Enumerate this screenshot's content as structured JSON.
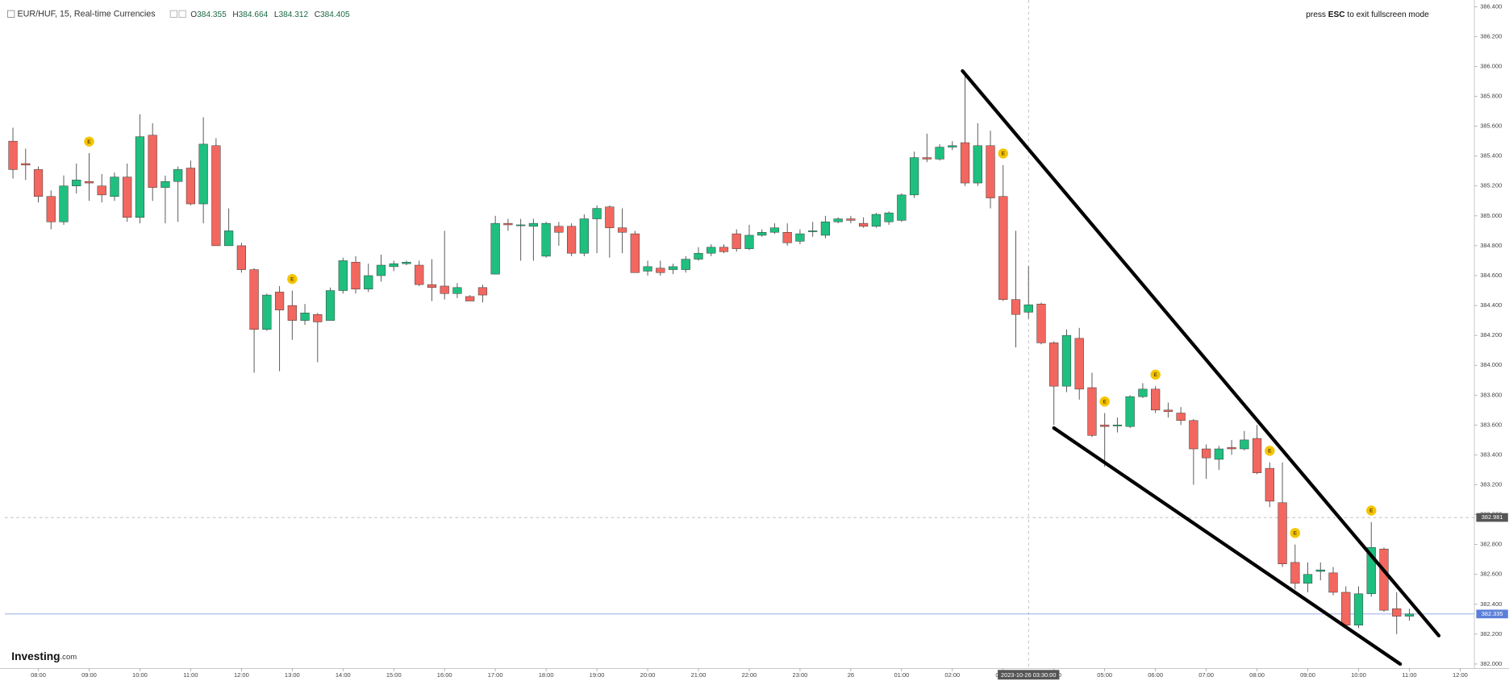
{
  "chart_data": {
    "type": "candlestick",
    "header": {
      "symbol": "EUR/HUF, 15, Real-time Currencies",
      "ohlc": [
        {
          "key": "O",
          "value": 384.355
        },
        {
          "key": "H",
          "value": 384.664
        },
        {
          "key": "L",
          "value": 384.312
        },
        {
          "key": "C",
          "value": 384.405
        }
      ]
    },
    "notice": [
      "press ",
      "ESC",
      " to exit fullscreen mode"
    ],
    "logo": {
      "name": "Investing",
      "suffix": ".com"
    },
    "up_color": "#1fbf7f",
    "down_color": "#f2675f",
    "x": [
      7.5,
      7.75,
      8,
      8.25,
      8.5,
      8.75,
      9,
      9.25,
      9.5,
      9.75,
      10,
      10.25,
      10.5,
      10.75,
      11,
      11.25,
      11.5,
      11.75,
      12,
      12.25,
      12.5,
      12.75,
      13,
      13.25,
      13.5,
      13.75,
      14,
      14.25,
      14.5,
      14.75,
      15,
      15.25,
      15.5,
      15.75,
      16,
      16.25,
      16.5,
      16.75,
      17,
      17.25,
      17.5,
      17.75,
      18,
      18.25,
      18.5,
      18.75,
      19,
      19.25,
      19.5,
      19.75,
      20,
      20.25,
      20.5,
      20.75,
      21,
      21.25,
      21.5,
      21.75,
      22,
      22.25,
      22.5,
      22.75,
      23,
      23.25,
      23.5,
      23.75,
      24,
      24.25,
      24.5,
      24.75,
      25,
      25.25,
      25.5,
      25.75,
      26,
      26.25,
      26.5,
      26.75,
      27,
      27.25,
      27.5,
      27.75,
      28,
      28.25,
      28.5,
      28.75,
      29,
      29.25,
      29.5,
      29.75,
      30,
      30.25,
      30.5,
      30.75,
      31,
      31.25,
      31.5,
      31.75,
      32,
      32.25,
      32.5,
      32.75,
      33,
      33.25,
      33.5,
      33.75,
      34,
      34.25,
      34.5,
      34.75,
      35
    ],
    "open": [
      385.5,
      385.35,
      385.31,
      385.13,
      384.96,
      385.2,
      385.23,
      385.2,
      385.13,
      385.26,
      384.99,
      385.54,
      385.19,
      385.23,
      385.32,
      385.08,
      385.47,
      384.8,
      384.8,
      384.64,
      384.24,
      384.49,
      384.4,
      384.3,
      384.34,
      384.3,
      384.5,
      384.69,
      384.51,
      384.6,
      384.66,
      384.68,
      384.67,
      384.54,
      384.53,
      384.48,
      384.46,
      384.52,
      384.61,
      384.95,
      384.94,
      384.93,
      384.73,
      384.93,
      384.93,
      384.75,
      384.98,
      385.06,
      384.92,
      384.88,
      384.63,
      384.65,
      384.64,
      384.64,
      384.71,
      384.75,
      384.79,
      384.88,
      384.78,
      384.87,
      384.89,
      384.89,
      384.83,
      384.9,
      384.87,
      384.96,
      384.98,
      384.95,
      384.93,
      384.96,
      384.97,
      385.14,
      385.39,
      385.38,
      385.46,
      385.49,
      385.22,
      385.47,
      385.13,
      384.44,
      384.355,
      384.41,
      384.15,
      383.86,
      384.18,
      383.85,
      383.6,
      383.6,
      383.59,
      383.79,
      383.84,
      383.7,
      383.68,
      383.63,
      383.44,
      383.37,
      383.45,
      383.44,
      383.51,
      383.31,
      383.08,
      382.68,
      382.54,
      382.62,
      382.61,
      382.48,
      382.26,
      382.47,
      382.77,
      382.37,
      382.32
    ],
    "high": [
      385.59,
      385.45,
      385.33,
      385.17,
      385.27,
      385.35,
      385.42,
      385.28,
      385.29,
      385.35,
      385.68,
      385.62,
      385.27,
      385.33,
      385.37,
      385.66,
      385.52,
      385.05,
      384.82,
      384.65,
      384.48,
      384.53,
      384.5,
      384.41,
      384.35,
      384.52,
      384.72,
      384.73,
      384.68,
      384.74,
      384.7,
      384.7,
      384.7,
      384.71,
      384.9,
      384.55,
      384.47,
      384.54,
      385.0,
      384.98,
      384.98,
      384.98,
      384.96,
      384.96,
      384.95,
      385.01,
      385.07,
      385.07,
      385.05,
      384.9,
      384.7,
      384.7,
      384.68,
      384.73,
      384.79,
      384.81,
      384.81,
      384.91,
      384.94,
      384.91,
      384.95,
      384.95,
      384.91,
      384.96,
      385.0,
      384.99,
      385.0,
      384.99,
      385.02,
      385.03,
      385.15,
      385.43,
      385.55,
      385.48,
      385.5,
      385.95,
      385.62,
      385.57,
      385.34,
      384.9,
      384.664,
      384.42,
      384.16,
      384.24,
      384.25,
      383.95,
      383.68,
      383.65,
      383.8,
      383.88,
      383.86,
      383.75,
      383.72,
      383.64,
      383.47,
      383.46,
      383.5,
      383.56,
      383.6,
      383.35,
      383.35,
      382.8,
      382.68,
      382.68,
      382.65,
      382.52,
      382.52,
      382.95,
      382.78,
      382.48,
      382.37
    ],
    "low": [
      385.25,
      385.24,
      385.09,
      384.91,
      384.94,
      385.15,
      385.1,
      385.09,
      385.1,
      384.96,
      384.95,
      385.1,
      384.95,
      384.96,
      385.07,
      384.95,
      384.8,
      384.8,
      384.62,
      383.95,
      384.23,
      383.96,
      384.17,
      384.27,
      384.02,
      384.3,
      384.48,
      384.48,
      384.49,
      384.56,
      384.63,
      384.67,
      384.53,
      384.43,
      384.44,
      384.45,
      384.43,
      384.42,
      384.61,
      384.9,
      384.7,
      384.7,
      384.72,
      384.8,
      384.73,
      384.73,
      384.75,
      384.72,
      384.75,
      384.62,
      384.6,
      384.6,
      384.61,
      384.62,
      384.7,
      384.73,
      384.75,
      384.76,
      384.77,
      384.86,
      384.88,
      384.8,
      384.81,
      384.86,
      384.85,
      384.95,
      384.95,
      384.92,
      384.92,
      384.94,
      384.96,
      385.12,
      385.36,
      385.37,
      385.44,
      385.2,
      385.2,
      385.05,
      384.43,
      384.12,
      384.312,
      384.14,
      383.6,
      383.82,
      383.77,
      383.52,
      383.32,
      383.55,
      383.58,
      383.78,
      383.68,
      383.65,
      383.6,
      383.2,
      383.24,
      383.3,
      383.4,
      383.43,
      383.27,
      383.05,
      382.65,
      382.5,
      382.48,
      382.56,
      382.46,
      382.24,
      382.24,
      382.45,
      382.35,
      382.2,
      382.29
    ],
    "close": [
      385.31,
      385.34,
      385.13,
      384.96,
      385.2,
      385.24,
      385.22,
      385.14,
      385.26,
      384.99,
      385.53,
      385.19,
      385.23,
      385.31,
      385.08,
      385.48,
      384.8,
      384.9,
      384.64,
      384.24,
      384.47,
      384.37,
      384.3,
      384.35,
      384.29,
      384.5,
      384.7,
      384.51,
      384.6,
      384.67,
      384.68,
      384.69,
      384.54,
      384.52,
      384.48,
      384.52,
      384.43,
      384.47,
      384.95,
      384.94,
      384.94,
      384.95,
      384.95,
      384.89,
      384.75,
      384.98,
      385.05,
      384.92,
      384.89,
      384.62,
      384.66,
      384.62,
      384.66,
      384.71,
      384.75,
      384.79,
      384.76,
      384.78,
      384.87,
      384.89,
      384.92,
      384.82,
      384.88,
      384.9,
      384.96,
      384.98,
      384.97,
      384.93,
      385.01,
      385.02,
      385.14,
      385.39,
      385.38,
      385.46,
      385.47,
      385.22,
      385.47,
      385.12,
      384.44,
      384.34,
      384.405,
      384.15,
      383.86,
      384.2,
      383.84,
      383.53,
      383.59,
      383.6,
      383.79,
      383.84,
      383.7,
      383.69,
      383.63,
      383.44,
      383.38,
      383.44,
      383.44,
      383.5,
      383.28,
      383.09,
      382.67,
      382.54,
      382.6,
      382.63,
      382.48,
      382.26,
      382.47,
      382.78,
      382.36,
      382.32,
      382.335
    ],
    "xlim": [
      7.34,
      36.28
    ],
    "ylim": [
      381.97,
      386.445
    ],
    "xticks": [
      {
        "value": 8,
        "label": "08:00"
      },
      {
        "value": 9,
        "label": "09:00"
      },
      {
        "value": 10,
        "label": "10:00"
      },
      {
        "value": 11,
        "label": "11:00"
      },
      {
        "value": 12,
        "label": "12:00"
      },
      {
        "value": 13,
        "label": "13:00"
      },
      {
        "value": 14,
        "label": "14:00"
      },
      {
        "value": 15,
        "label": "15:00"
      },
      {
        "value": 16,
        "label": "16:00"
      },
      {
        "value": 17,
        "label": "17:00"
      },
      {
        "value": 18,
        "label": "18:00"
      },
      {
        "value": 19,
        "label": "19:00"
      },
      {
        "value": 20,
        "label": "20:00"
      },
      {
        "value": 21,
        "label": "21:00"
      },
      {
        "value": 22,
        "label": "22:00"
      },
      {
        "value": 23,
        "label": "23:00"
      },
      {
        "value": 24,
        "label": "26"
      },
      {
        "value": 25,
        "label": "01:00"
      },
      {
        "value": 26,
        "label": "02:00"
      },
      {
        "value": 27,
        "label": "03:00"
      },
      {
        "value": 28,
        "label": "04:00"
      },
      {
        "value": 29,
        "label": "05:00"
      },
      {
        "value": 30,
        "label": "06:00"
      },
      {
        "value": 31,
        "label": "07:00"
      },
      {
        "value": 32,
        "label": "08:00"
      },
      {
        "value": 33,
        "label": "09:00"
      },
      {
        "value": 34,
        "label": "10:00"
      },
      {
        "value": 35,
        "label": "11:00"
      },
      {
        "value": 36,
        "label": "12:00"
      }
    ],
    "yticks": [
      {
        "value": 382,
        "label": "382.000"
      },
      {
        "value": 382.2,
        "label": "382.200"
      },
      {
        "value": 382.4,
        "label": "382.400"
      },
      {
        "value": 382.6,
        "label": "382.600"
      },
      {
        "value": 382.8,
        "label": "382.800"
      },
      {
        "value": 383,
        "label": "383.000"
      },
      {
        "value": 383.2,
        "label": "383.200"
      },
      {
        "value": 383.4,
        "label": "383.400"
      },
      {
        "value": 383.6,
        "label": "383.600"
      },
      {
        "value": 383.8,
        "label": "383.800"
      },
      {
        "value": 384,
        "label": "384.000"
      },
      {
        "value": 384.2,
        "label": "384.200"
      },
      {
        "value": 384.4,
        "label": "384.400"
      },
      {
        "value": 384.6,
        "label": "384.600"
      },
      {
        "value": 384.8,
        "label": "384.800"
      },
      {
        "value": 385,
        "label": "385.000"
      },
      {
        "value": 385.2,
        "label": "385.200"
      },
      {
        "value": 385.4,
        "label": "385.400"
      },
      {
        "value": 385.6,
        "label": "385.600"
      },
      {
        "value": 385.8,
        "label": "385.800"
      },
      {
        "value": 386,
        "label": "386.000"
      },
      {
        "value": 386.2,
        "label": "386.200"
      },
      {
        "value": 386.4,
        "label": "386.400"
      }
    ],
    "grid": false,
    "events": [
      {
        "x": 9,
        "label": "E"
      },
      {
        "x": 13,
        "label": "E"
      },
      {
        "x": 27,
        "label": "E"
      },
      {
        "x": 29,
        "label": "E"
      },
      {
        "x": 30,
        "label": "E"
      },
      {
        "x": 32.25,
        "label": "E"
      },
      {
        "x": 32.75,
        "label": "E"
      },
      {
        "x": 34.25,
        "label": "E"
      }
    ],
    "trendlines": [
      {
        "x": [
          26.2,
          35.58
        ],
        "y": [
          385.97,
          382.19
        ],
        "color": "#000000"
      },
      {
        "x": [
          28.0,
          34.82
        ],
        "y": [
          383.58,
          382.0
        ],
        "color": "#000000"
      }
    ],
    "crosshair": {
      "x": 27.5,
      "x_label": "2023-10-26 03:30:00",
      "y": 382.981
    },
    "last_price": {
      "value": 382.335,
      "color": "#5b7fd8"
    }
  }
}
